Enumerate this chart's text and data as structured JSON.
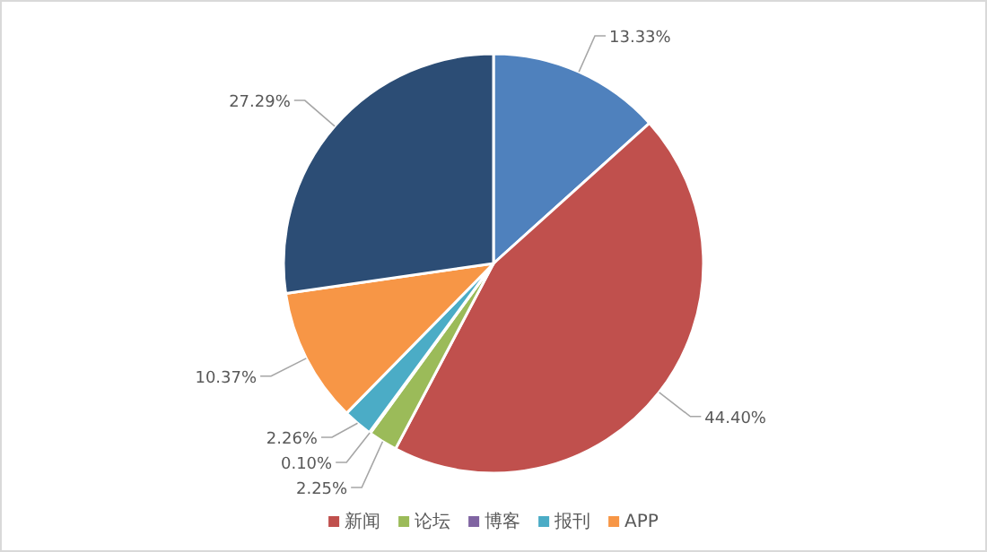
{
  "chart_data": {
    "type": "pie",
    "categories": [
      null,
      "新闻",
      "论坛",
      "博客",
      "报刊",
      "APP",
      null
    ],
    "values": [
      13.33,
      44.4,
      2.25,
      0.1,
      2.26,
      10.37,
      27.29
    ],
    "colors": [
      "#4f81bd",
      "#c0504d",
      "#9bbb59",
      "#8064a2",
      "#4bacc6",
      "#f79646",
      "#2c4d75"
    ],
    "value_labels": [
      "13.33%",
      "44.40%",
      "2.25%",
      "0.10%",
      "2.26%",
      "10.37%",
      "27.29%"
    ],
    "legend": "bottom"
  }
}
